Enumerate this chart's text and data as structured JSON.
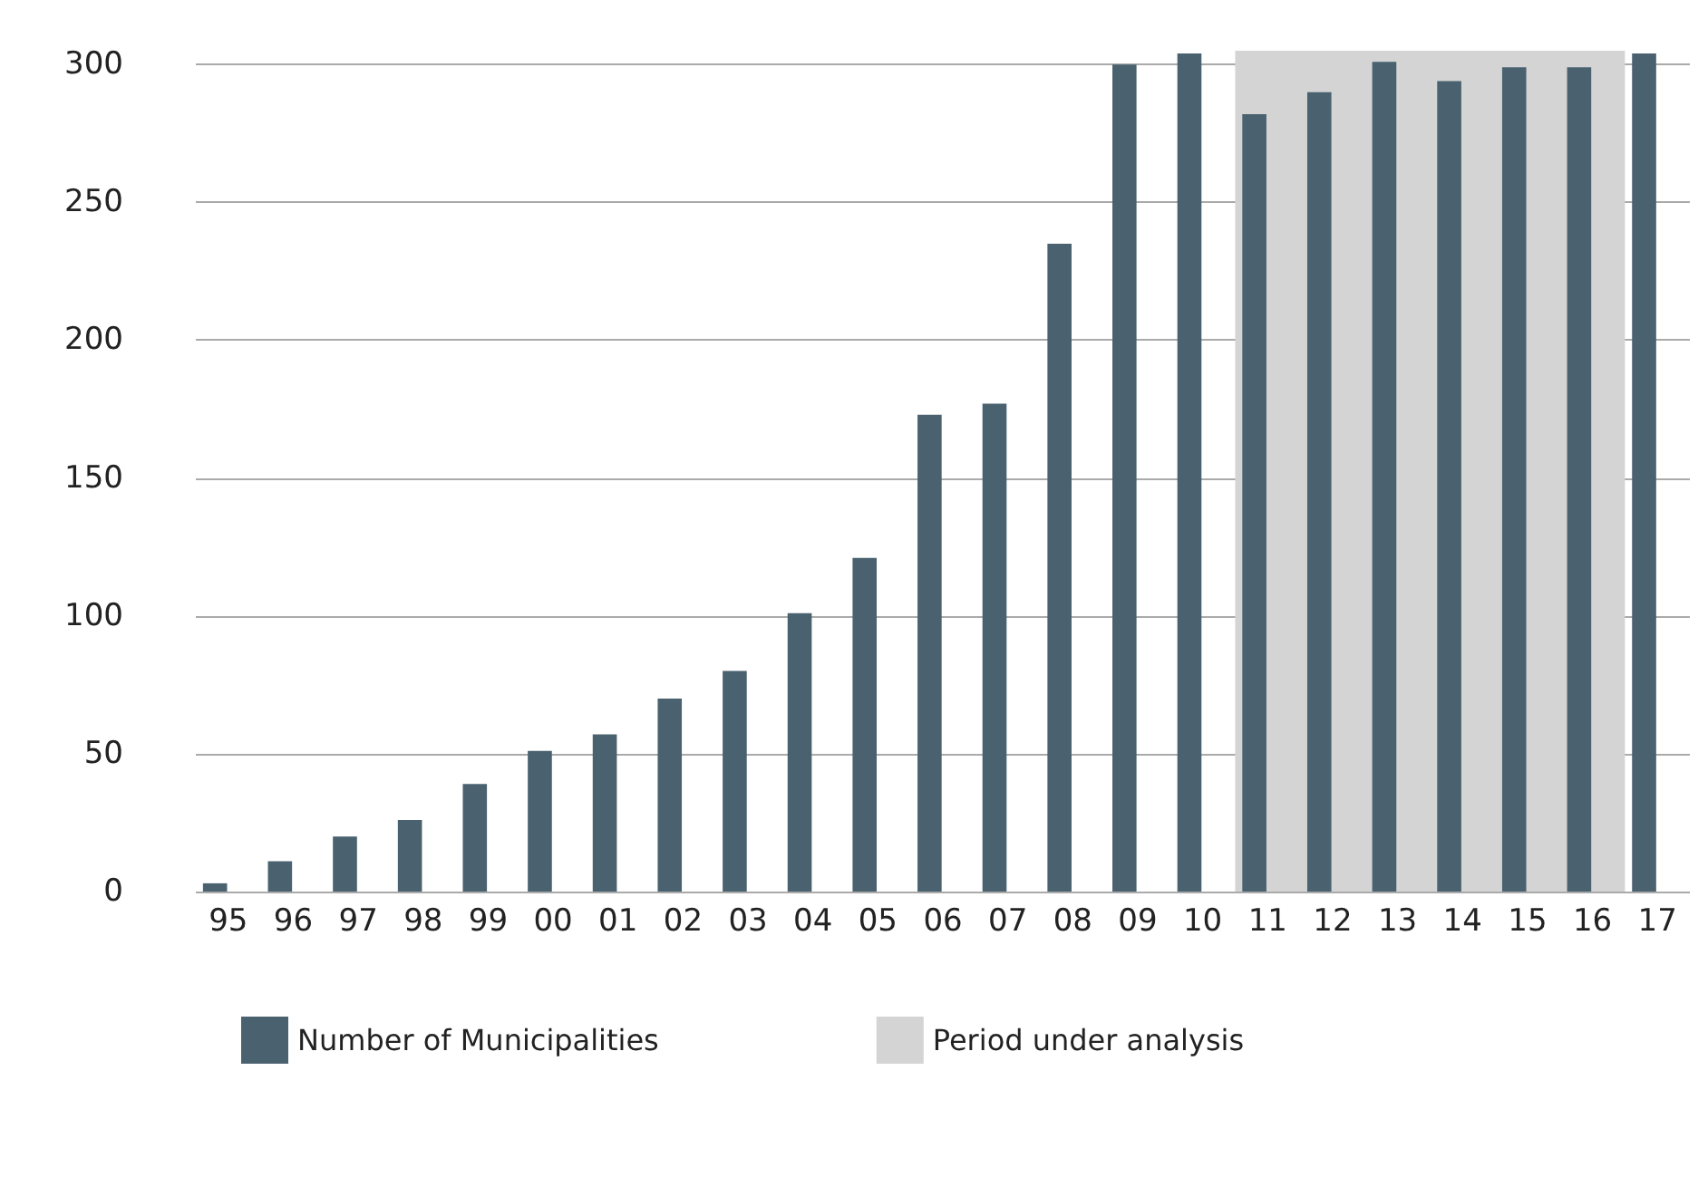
{
  "chart_data": {
    "type": "bar",
    "categories": [
      "95",
      "96",
      "97",
      "98",
      "99",
      "00",
      "01",
      "02",
      "03",
      "04",
      "05",
      "06",
      "07",
      "08",
      "09",
      "10",
      "11",
      "12",
      "13",
      "14",
      "15",
      "16",
      "17"
    ],
    "series": [
      {
        "name": "Number of Municipalities",
        "color": "#4a6270",
        "values": [
          3,
          11,
          20,
          26,
          39,
          51,
          57,
          70,
          80,
          101,
          121,
          173,
          177,
          235,
          300,
          304,
          282,
          290,
          301,
          294,
          299,
          299,
          304
        ]
      }
    ],
    "ylim": [
      0,
      305
    ],
    "yticks": [
      0,
      50,
      100,
      150,
      200,
      250,
      300
    ],
    "grid": "y",
    "legend": "bottom",
    "bands": [
      {
        "axis": "x",
        "from": "11",
        "to": "16",
        "label": "Period under analysis",
        "color": "#d4d4d4"
      }
    ]
  }
}
